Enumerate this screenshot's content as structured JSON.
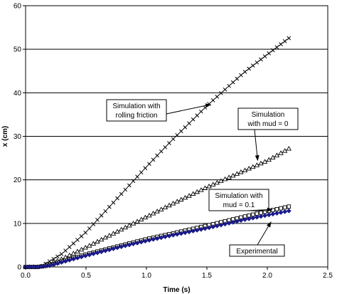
{
  "chart_data": {
    "type": "scatter",
    "title": "",
    "xlabel": "Time (s)",
    "ylabel": "x (cm)",
    "xlim": [
      0,
      2.5
    ],
    "ylim": [
      0,
      60
    ],
    "xticks": [
      "0.0",
      "0.5",
      "1.0",
      "1.5",
      "2.0",
      "2.5"
    ],
    "yticks": [
      "0",
      "10",
      "20",
      "30",
      "40",
      "50",
      "60"
    ],
    "grid": "horizontal",
    "legend": "none",
    "series": [
      {
        "name": "Simulation with rolling friction",
        "marker": "cross",
        "color": "#000000",
        "x": [
          0.0,
          0.12,
          0.3,
          0.5,
          0.8,
          1.0,
          1.2,
          1.5,
          1.8,
          2.0,
          2.2
        ],
        "y": [
          0.0,
          0.0,
          3.0,
          8.0,
          17.0,
          23.0,
          28.8,
          37.0,
          44.5,
          48.8,
          53.0
        ]
      },
      {
        "name": "Simulation with mud = 0",
        "marker": "triangle",
        "color": "#000000",
        "x": [
          0.0,
          0.12,
          0.3,
          0.5,
          0.8,
          1.0,
          1.2,
          1.5,
          1.8,
          2.0,
          2.2
        ],
        "y": [
          0.0,
          0.0,
          1.8,
          4.5,
          8.7,
          11.5,
          14.3,
          18.3,
          22.0,
          24.4,
          27.5
        ]
      },
      {
        "name": "Simulation with mud = 0.1",
        "marker": "square",
        "color": "#000000",
        "x": [
          0.0,
          0.1,
          0.2,
          0.3,
          0.5,
          0.8,
          1.0,
          1.2,
          1.5,
          1.8,
          2.0,
          2.2
        ],
        "y": [
          0.0,
          0.0,
          0.4,
          1.3,
          2.9,
          5.0,
          6.4,
          7.6,
          9.5,
          11.5,
          12.8,
          14.0
        ]
      },
      {
        "name": "Experimental",
        "marker": "diamond",
        "color": "#1a1a8c",
        "x": [
          0.0,
          0.1,
          0.2,
          0.3,
          0.5,
          0.8,
          1.0,
          1.2,
          1.5,
          1.8,
          2.0,
          2.2
        ],
        "y": [
          0.0,
          0.0,
          0.3,
          1.1,
          2.6,
          4.7,
          6.0,
          7.2,
          8.9,
          10.8,
          11.9,
          13.0
        ]
      }
    ],
    "annotations": [
      {
        "lines": [
          "Simulation with",
          "rolling friction"
        ],
        "target": [
          1.53,
          37.3
        ]
      },
      {
        "lines": [
          "Simulation",
          "with mud = 0"
        ],
        "target": [
          1.92,
          24.5
        ]
      },
      {
        "lines": [
          "Simulation with",
          "mud = 0.1"
        ],
        "target": [
          2.04,
          13.2
        ]
      },
      {
        "lines": [
          "Experimental"
        ],
        "target": [
          2.03,
          10.3
        ]
      }
    ]
  }
}
